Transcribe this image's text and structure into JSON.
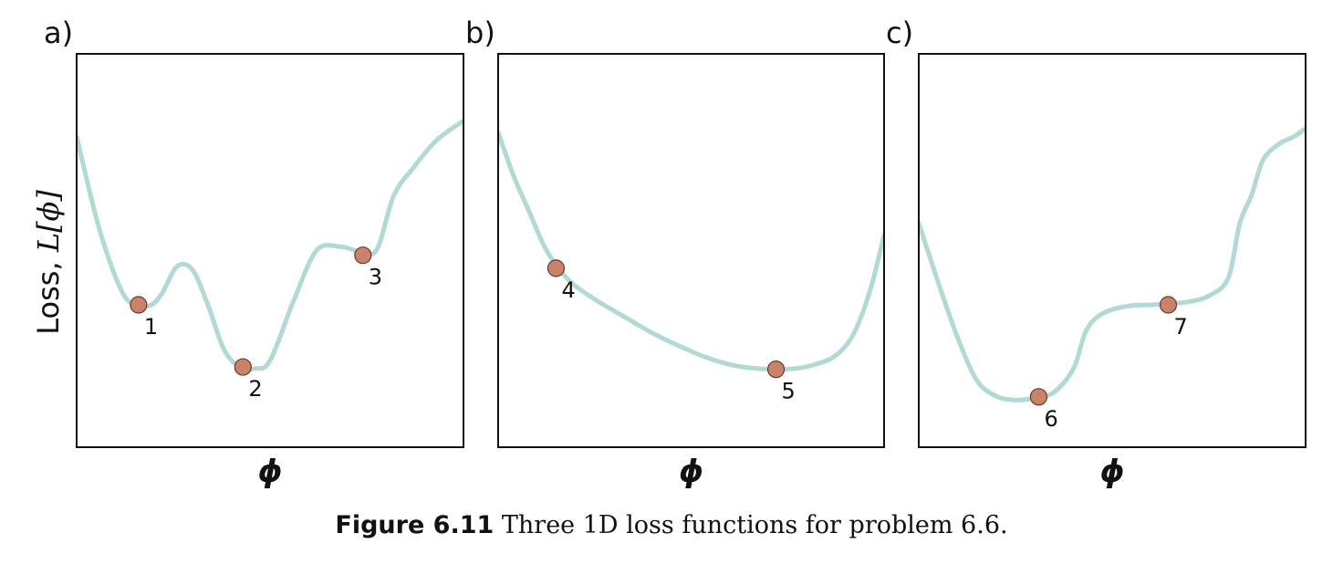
{
  "chart_data": [
    {
      "type": "line",
      "panel_label": "a)",
      "xlabel": "ϕ",
      "ylabel_text": "Loss, ",
      "ylabel_math": "L[ϕ]",
      "x": [
        0,
        0.06,
        0.12,
        0.16,
        0.19,
        0.22,
        0.26,
        0.3,
        0.34,
        0.38,
        0.42,
        0.46,
        0.5,
        0.56,
        0.62,
        0.68,
        0.72,
        0.75,
        0.78,
        0.82,
        0.87,
        0.93,
        1.0
      ],
      "y": [
        0.79,
        0.55,
        0.39,
        0.365,
        0.36,
        0.39,
        0.46,
        0.45,
        0.36,
        0.25,
        0.205,
        0.2,
        0.22,
        0.37,
        0.5,
        0.51,
        0.5,
        0.49,
        0.51,
        0.64,
        0.71,
        0.78,
        0.83
      ],
      "points": [
        {
          "label": "1",
          "x": 0.16,
          "y": 0.362
        },
        {
          "label": "2",
          "x": 0.43,
          "y": 0.204
        },
        {
          "label": "3",
          "x": 0.74,
          "y": 0.488
        }
      ],
      "line_color": "#b2d9d6",
      "point_color": "#c8836a"
    },
    {
      "type": "line",
      "panel_label": "b)",
      "xlabel": "ϕ",
      "x": [
        0,
        0.04,
        0.08,
        0.12,
        0.16,
        0.2,
        0.26,
        0.33,
        0.4,
        0.47,
        0.54,
        0.61,
        0.67,
        0.72,
        0.77,
        0.82,
        0.87,
        0.91,
        0.94,
        0.97,
        1.0
      ],
      "y": [
        0.8,
        0.69,
        0.6,
        0.51,
        0.45,
        0.41,
        0.37,
        0.33,
        0.29,
        0.257,
        0.228,
        0.208,
        0.2,
        0.198,
        0.2,
        0.21,
        0.23,
        0.27,
        0.33,
        0.42,
        0.54
      ],
      "points": [
        {
          "label": "4",
          "x": 0.15,
          "y": 0.455
        },
        {
          "label": "5",
          "x": 0.72,
          "y": 0.198
        }
      ],
      "line_color": "#b2d9d6",
      "point_color": "#c8836a"
    },
    {
      "type": "line",
      "panel_label": "c)",
      "xlabel": "ϕ",
      "x": [
        0,
        0.05,
        0.1,
        0.15,
        0.2,
        0.25,
        0.3,
        0.35,
        0.4,
        0.43,
        0.46,
        0.5,
        0.55,
        0.6,
        0.65,
        0.7,
        0.75,
        0.8,
        0.83,
        0.86,
        0.89,
        0.93,
        0.97,
        1.0
      ],
      "y": [
        0.57,
        0.42,
        0.28,
        0.17,
        0.13,
        0.12,
        0.125,
        0.14,
        0.2,
        0.29,
        0.33,
        0.35,
        0.36,
        0.362,
        0.365,
        0.37,
        0.385,
        0.43,
        0.57,
        0.64,
        0.73,
        0.77,
        0.79,
        0.81
      ],
      "points": [
        {
          "label": "6",
          "x": 0.31,
          "y": 0.128
        },
        {
          "label": "7",
          "x": 0.645,
          "y": 0.362
        }
      ],
      "line_color": "#b2d9d6",
      "point_color": "#c8836a"
    }
  ],
  "caption": {
    "label": "Figure 6.11",
    "text": " Three 1D loss functions for problem 6.6."
  }
}
